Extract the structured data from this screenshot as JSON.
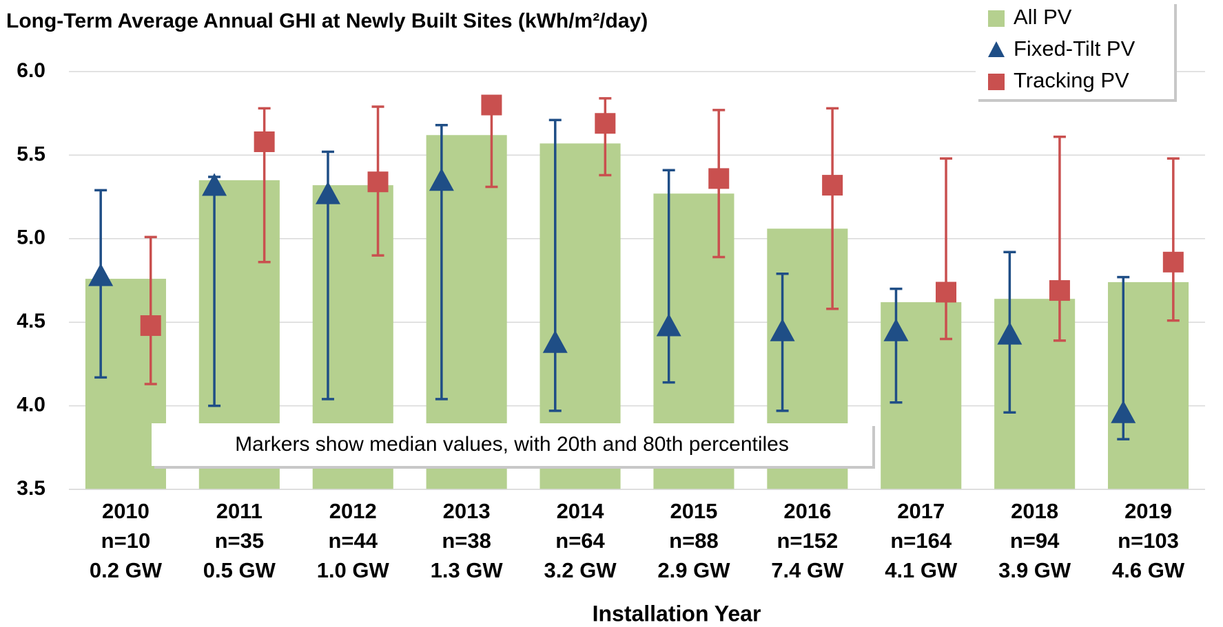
{
  "chart_data": {
    "type": "bar",
    "title": "Long-Term Average Annual GHI at Newly Built Sites (kWh/m²/day)",
    "x_label": "Installation Year",
    "annotation": "Markers show median values, with 20th and 80th percentiles",
    "categories": [
      "2010",
      "2011",
      "2012",
      "2013",
      "2014",
      "2015",
      "2016",
      "2017",
      "2018",
      "2019"
    ],
    "sample_sizes": [
      "n=10",
      "n=35",
      "n=44",
      "n=38",
      "n=64",
      "n=88",
      "n=152",
      "n=164",
      "n=94",
      "n=103"
    ],
    "capacities": [
      "0.2 GW",
      "0.5 GW",
      "1.0 GW",
      "1.3 GW",
      "3.2 GW",
      "2.9 GW",
      "7.4 GW",
      "4.1 GW",
      "3.9 GW",
      "4.6 GW"
    ],
    "ylim": [
      3.5,
      6.0
    ],
    "yticks": [
      {
        "value": 3.5,
        "label": "3.5"
      },
      {
        "value": 4,
        "label": "4.0"
      },
      {
        "value": 4.5,
        "label": "4.5"
      },
      {
        "value": 5,
        "label": "5.0"
      },
      {
        "value": 5.5,
        "label": "5.5"
      },
      {
        "value": 6,
        "label": "6.0"
      }
    ],
    "grid": true,
    "legend": "top-right",
    "series": [
      {
        "name": "All PV",
        "color": "#b5d08f",
        "marker": "bar",
        "values": [
          4.76,
          5.35,
          5.32,
          5.62,
          5.57,
          5.27,
          5.06,
          4.62,
          4.64,
          4.74
        ]
      },
      {
        "name": "Fixed-Tilt PV",
        "color": "#1f4e86",
        "marker": "triangle",
        "values": [
          4.77,
          5.31,
          5.26,
          5.34,
          4.37,
          4.47,
          4.44,
          4.44,
          4.42,
          3.95
        ],
        "p20": [
          4.17,
          4.0,
          4.04,
          4.04,
          3.97,
          4.14,
          3.97,
          4.02,
          3.96,
          3.8
        ],
        "p80": [
          5.29,
          5.37,
          5.52,
          5.68,
          5.71,
          5.41,
          4.79,
          4.7,
          4.92,
          4.77
        ]
      },
      {
        "name": "Tracking PV",
        "color": "#c9504f",
        "marker": "square",
        "values": [
          4.48,
          5.58,
          5.34,
          5.8,
          5.69,
          5.36,
          5.32,
          4.68,
          4.69,
          4.86
        ],
        "p20": [
          4.13,
          4.86,
          4.9,
          5.31,
          5.38,
          4.89,
          4.58,
          4.4,
          4.39,
          4.51
        ],
        "p80": [
          5.01,
          5.78,
          5.79,
          5.8,
          5.84,
          5.77,
          5.78,
          5.48,
          5.61,
          5.48
        ]
      }
    ]
  }
}
